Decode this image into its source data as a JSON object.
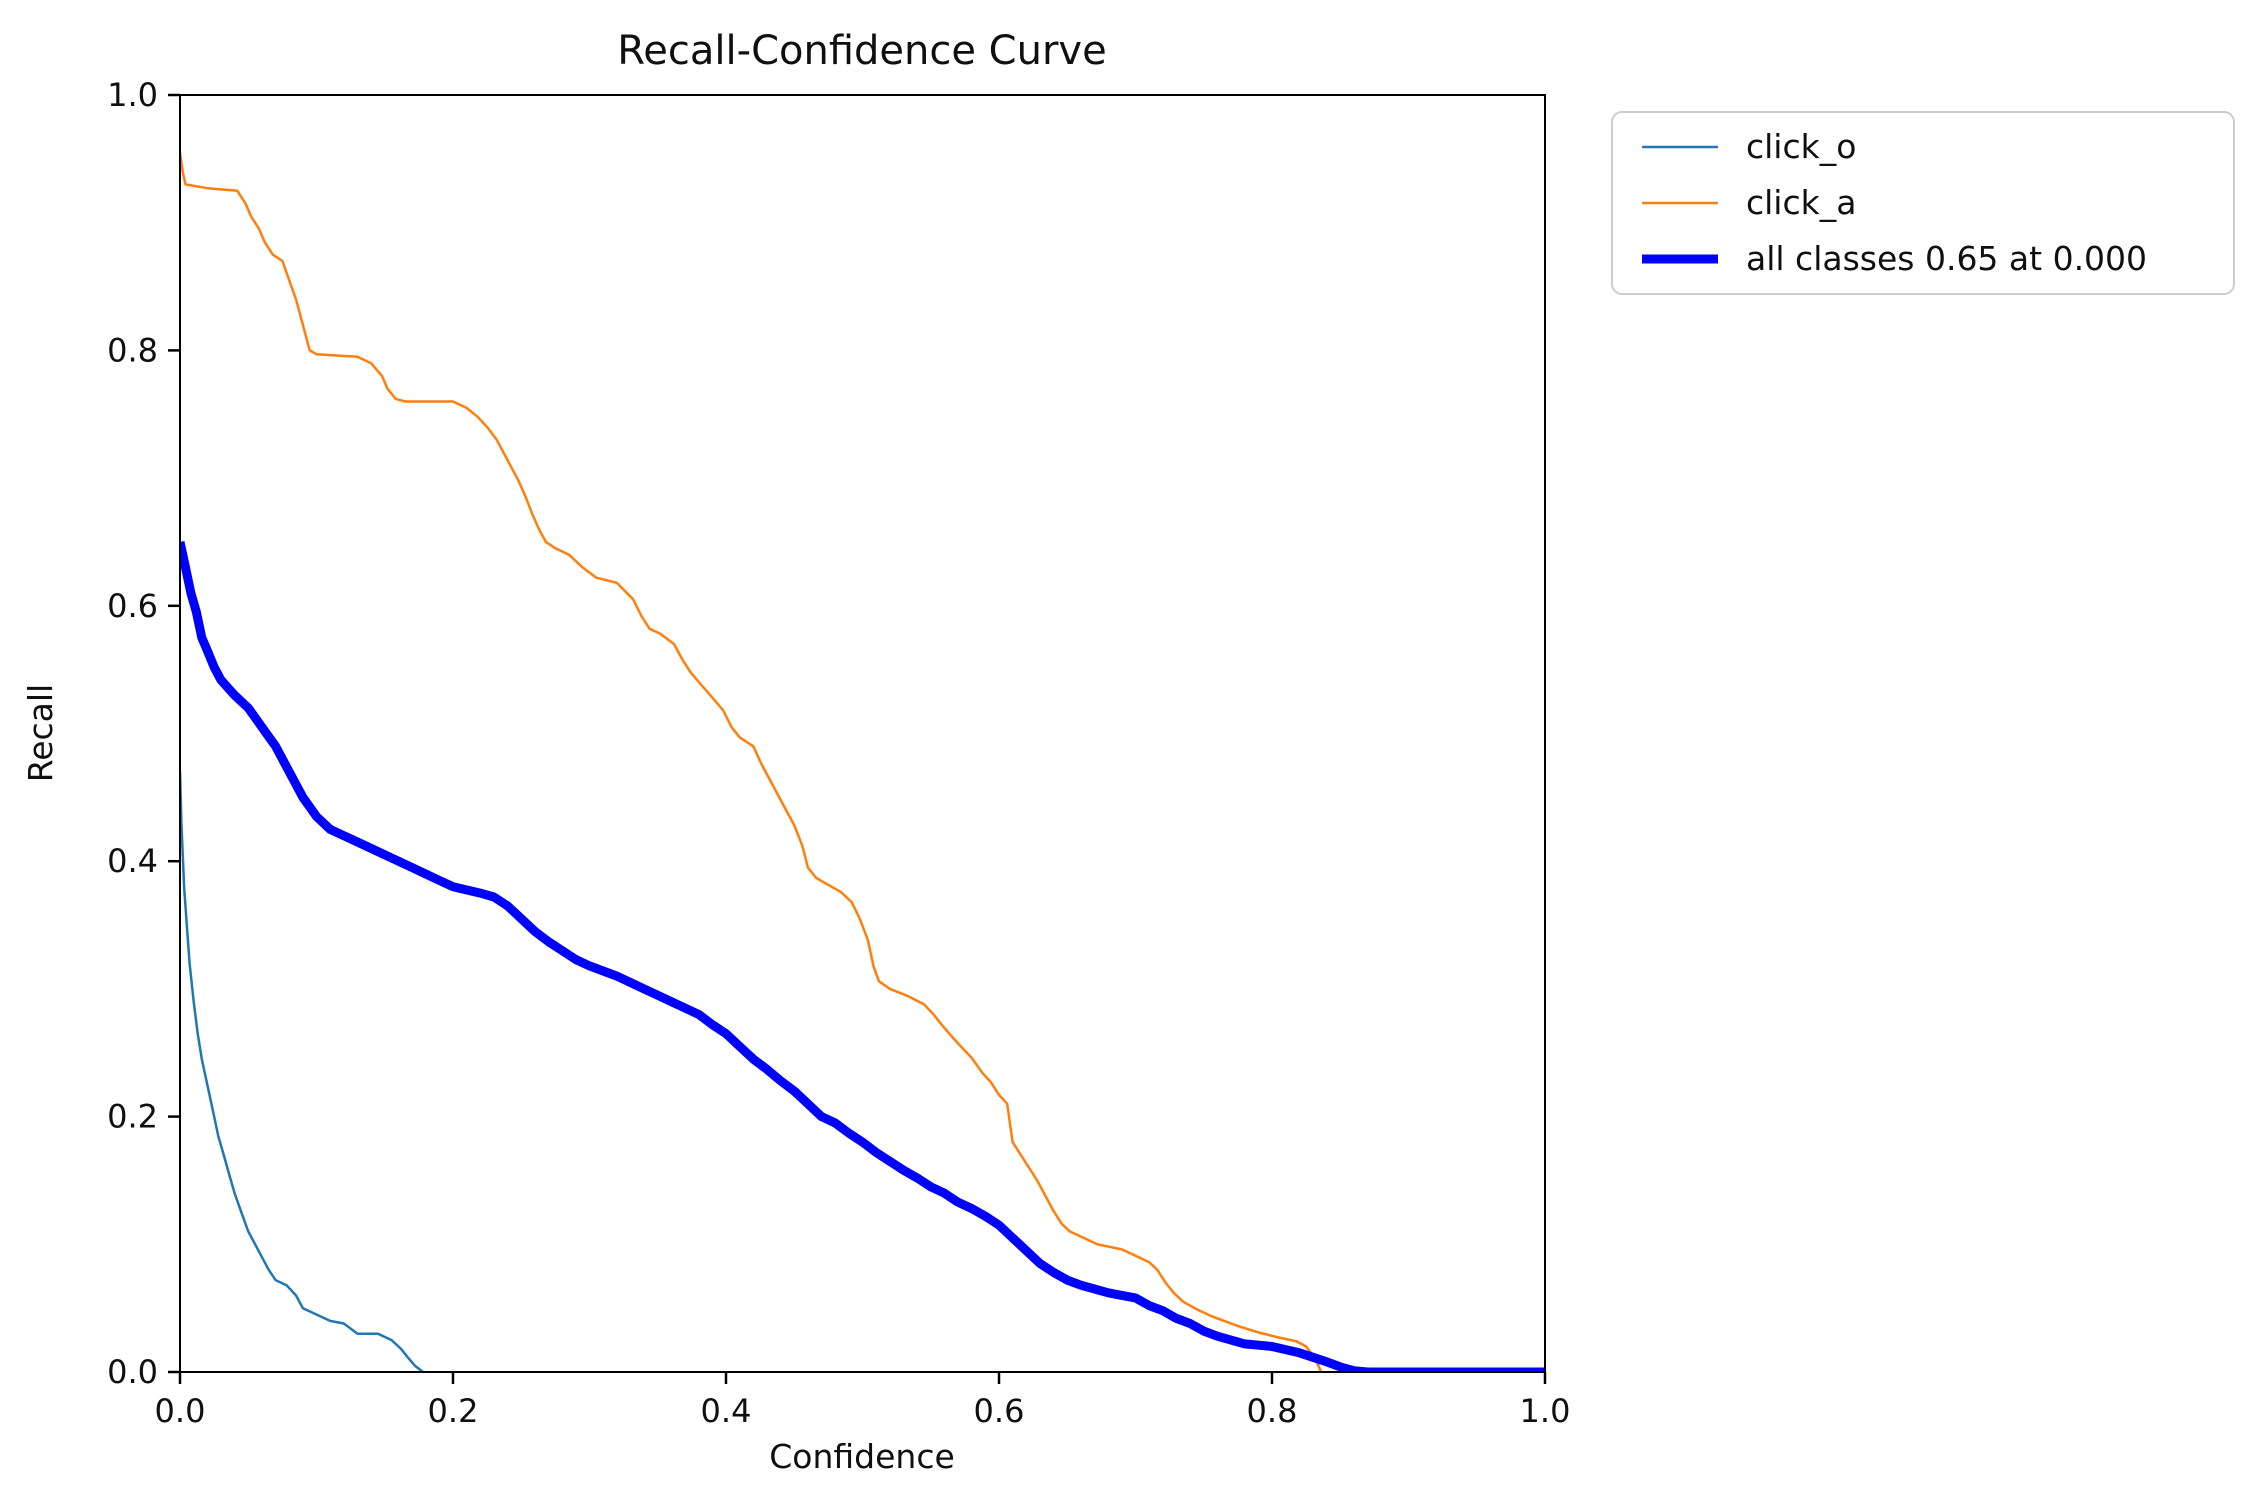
{
  "chart_data": {
    "type": "line",
    "title": "Recall-Confidence Curve",
    "xlabel": "Confidence",
    "ylabel": "Recall",
    "xlim": [
      0.0,
      1.0
    ],
    "ylim": [
      0.0,
      1.0
    ],
    "xticks": [
      "0.0",
      "0.2",
      "0.4",
      "0.6",
      "0.8",
      "1.0"
    ],
    "yticks": [
      "0.0",
      "0.2",
      "0.4",
      "0.6",
      "0.8",
      "1.0"
    ],
    "grid": false,
    "legend_position": "outside-upper-right",
    "series": [
      {
        "name": "click_o",
        "color": "#1f77b4",
        "linewidth": 2.5,
        "points": [
          [
            0.0,
            0.47
          ],
          [
            0.001,
            0.43
          ],
          [
            0.003,
            0.38
          ],
          [
            0.005,
            0.35
          ],
          [
            0.007,
            0.32
          ],
          [
            0.01,
            0.29
          ],
          [
            0.013,
            0.265
          ],
          [
            0.016,
            0.245
          ],
          [
            0.02,
            0.225
          ],
          [
            0.024,
            0.205
          ],
          [
            0.028,
            0.185
          ],
          [
            0.032,
            0.17
          ],
          [
            0.036,
            0.155
          ],
          [
            0.04,
            0.14
          ],
          [
            0.045,
            0.125
          ],
          [
            0.05,
            0.11
          ],
          [
            0.055,
            0.1
          ],
          [
            0.06,
            0.09
          ],
          [
            0.065,
            0.08
          ],
          [
            0.07,
            0.072
          ],
          [
            0.078,
            0.068
          ],
          [
            0.085,
            0.06
          ],
          [
            0.09,
            0.05
          ],
          [
            0.1,
            0.045
          ],
          [
            0.11,
            0.04
          ],
          [
            0.12,
            0.038
          ],
          [
            0.13,
            0.03
          ],
          [
            0.145,
            0.03
          ],
          [
            0.155,
            0.025
          ],
          [
            0.162,
            0.018
          ],
          [
            0.168,
            0.01
          ],
          [
            0.172,
            0.005
          ],
          [
            0.178,
            0.0
          ]
        ]
      },
      {
        "name": "click_a",
        "color": "#ff7f0e",
        "linewidth": 2.5,
        "points": [
          [
            0.0,
            0.955
          ],
          [
            0.002,
            0.94
          ],
          [
            0.004,
            0.93
          ],
          [
            0.02,
            0.927
          ],
          [
            0.042,
            0.925
          ],
          [
            0.048,
            0.915
          ],
          [
            0.052,
            0.905
          ],
          [
            0.058,
            0.895
          ],
          [
            0.062,
            0.885
          ],
          [
            0.068,
            0.875
          ],
          [
            0.075,
            0.87
          ],
          [
            0.08,
            0.855
          ],
          [
            0.085,
            0.84
          ],
          [
            0.09,
            0.82
          ],
          [
            0.095,
            0.8
          ],
          [
            0.1,
            0.797
          ],
          [
            0.13,
            0.795
          ],
          [
            0.14,
            0.79
          ],
          [
            0.148,
            0.78
          ],
          [
            0.152,
            0.77
          ],
          [
            0.158,
            0.762
          ],
          [
            0.165,
            0.76
          ],
          [
            0.2,
            0.76
          ],
          [
            0.21,
            0.755
          ],
          [
            0.218,
            0.748
          ],
          [
            0.225,
            0.74
          ],
          [
            0.232,
            0.73
          ],
          [
            0.238,
            0.718
          ],
          [
            0.243,
            0.708
          ],
          [
            0.248,
            0.698
          ],
          [
            0.253,
            0.686
          ],
          [
            0.258,
            0.672
          ],
          [
            0.263,
            0.66
          ],
          [
            0.268,
            0.65
          ],
          [
            0.275,
            0.645
          ],
          [
            0.285,
            0.64
          ],
          [
            0.295,
            0.63
          ],
          [
            0.305,
            0.622
          ],
          [
            0.32,
            0.618
          ],
          [
            0.332,
            0.605
          ],
          [
            0.338,
            0.592
          ],
          [
            0.344,
            0.582
          ],
          [
            0.352,
            0.578
          ],
          [
            0.362,
            0.57
          ],
          [
            0.368,
            0.558
          ],
          [
            0.374,
            0.548
          ],
          [
            0.382,
            0.538
          ],
          [
            0.39,
            0.528
          ],
          [
            0.398,
            0.518
          ],
          [
            0.404,
            0.505
          ],
          [
            0.41,
            0.497
          ],
          [
            0.42,
            0.49
          ],
          [
            0.426,
            0.476
          ],
          [
            0.432,
            0.464
          ],
          [
            0.438,
            0.452
          ],
          [
            0.444,
            0.44
          ],
          [
            0.45,
            0.428
          ],
          [
            0.456,
            0.412
          ],
          [
            0.46,
            0.395
          ],
          [
            0.466,
            0.387
          ],
          [
            0.474,
            0.382
          ],
          [
            0.484,
            0.376
          ],
          [
            0.492,
            0.368
          ],
          [
            0.498,
            0.355
          ],
          [
            0.504,
            0.338
          ],
          [
            0.508,
            0.318
          ],
          [
            0.512,
            0.306
          ],
          [
            0.52,
            0.3
          ],
          [
            0.532,
            0.295
          ],
          [
            0.545,
            0.288
          ],
          [
            0.552,
            0.28
          ],
          [
            0.558,
            0.272
          ],
          [
            0.566,
            0.262
          ],
          [
            0.572,
            0.255
          ],
          [
            0.58,
            0.246
          ],
          [
            0.588,
            0.234
          ],
          [
            0.594,
            0.227
          ],
          [
            0.6,
            0.217
          ],
          [
            0.606,
            0.21
          ],
          [
            0.61,
            0.18
          ],
          [
            0.616,
            0.17
          ],
          [
            0.622,
            0.16
          ],
          [
            0.628,
            0.15
          ],
          [
            0.634,
            0.138
          ],
          [
            0.64,
            0.126
          ],
          [
            0.646,
            0.116
          ],
          [
            0.652,
            0.11
          ],
          [
            0.662,
            0.105
          ],
          [
            0.672,
            0.1
          ],
          [
            0.69,
            0.096
          ],
          [
            0.7,
            0.091
          ],
          [
            0.71,
            0.086
          ],
          [
            0.716,
            0.08
          ],
          [
            0.722,
            0.07
          ],
          [
            0.728,
            0.062
          ],
          [
            0.735,
            0.055
          ],
          [
            0.745,
            0.049
          ],
          [
            0.755,
            0.044
          ],
          [
            0.765,
            0.04
          ],
          [
            0.775,
            0.036
          ],
          [
            0.79,
            0.031
          ],
          [
            0.805,
            0.027
          ],
          [
            0.818,
            0.024
          ],
          [
            0.825,
            0.02
          ],
          [
            0.83,
            0.013
          ],
          [
            0.834,
            0.005
          ],
          [
            0.836,
            0.0
          ]
        ]
      },
      {
        "name": "all classes 0.65 at 0.000",
        "color": "#0000ff",
        "linewidth": 9,
        "points": [
          [
            0.0,
            0.65
          ],
          [
            0.004,
            0.63
          ],
          [
            0.008,
            0.61
          ],
          [
            0.012,
            0.595
          ],
          [
            0.016,
            0.575
          ],
          [
            0.02,
            0.565
          ],
          [
            0.025,
            0.552
          ],
          [
            0.03,
            0.542
          ],
          [
            0.04,
            0.53
          ],
          [
            0.05,
            0.52
          ],
          [
            0.06,
            0.505
          ],
          [
            0.07,
            0.49
          ],
          [
            0.08,
            0.47
          ],
          [
            0.09,
            0.45
          ],
          [
            0.1,
            0.435
          ],
          [
            0.11,
            0.425
          ],
          [
            0.12,
            0.42
          ],
          [
            0.13,
            0.415
          ],
          [
            0.15,
            0.405
          ],
          [
            0.17,
            0.395
          ],
          [
            0.19,
            0.385
          ],
          [
            0.2,
            0.38
          ],
          [
            0.22,
            0.375
          ],
          [
            0.23,
            0.372
          ],
          [
            0.24,
            0.365
          ],
          [
            0.25,
            0.355
          ],
          [
            0.26,
            0.345
          ],
          [
            0.27,
            0.337
          ],
          [
            0.28,
            0.33
          ],
          [
            0.29,
            0.323
          ],
          [
            0.3,
            0.318
          ],
          [
            0.32,
            0.31
          ],
          [
            0.34,
            0.3
          ],
          [
            0.35,
            0.295
          ],
          [
            0.36,
            0.29
          ],
          [
            0.38,
            0.28
          ],
          [
            0.39,
            0.272
          ],
          [
            0.4,
            0.265
          ],
          [
            0.41,
            0.255
          ],
          [
            0.42,
            0.245
          ],
          [
            0.43,
            0.237
          ],
          [
            0.44,
            0.228
          ],
          [
            0.45,
            0.22
          ],
          [
            0.46,
            0.21
          ],
          [
            0.47,
            0.2
          ],
          [
            0.48,
            0.195
          ],
          [
            0.49,
            0.187
          ],
          [
            0.5,
            0.18
          ],
          [
            0.51,
            0.172
          ],
          [
            0.52,
            0.165
          ],
          [
            0.53,
            0.158
          ],
          [
            0.54,
            0.152
          ],
          [
            0.55,
            0.145
          ],
          [
            0.56,
            0.14
          ],
          [
            0.57,
            0.133
          ],
          [
            0.58,
            0.128
          ],
          [
            0.59,
            0.122
          ],
          [
            0.6,
            0.115
          ],
          [
            0.61,
            0.105
          ],
          [
            0.62,
            0.095
          ],
          [
            0.63,
            0.085
          ],
          [
            0.64,
            0.078
          ],
          [
            0.65,
            0.072
          ],
          [
            0.66,
            0.068
          ],
          [
            0.67,
            0.065
          ],
          [
            0.68,
            0.062
          ],
          [
            0.69,
            0.06
          ],
          [
            0.7,
            0.058
          ],
          [
            0.71,
            0.052
          ],
          [
            0.72,
            0.048
          ],
          [
            0.73,
            0.042
          ],
          [
            0.74,
            0.038
          ],
          [
            0.75,
            0.032
          ],
          [
            0.76,
            0.028
          ],
          [
            0.77,
            0.025
          ],
          [
            0.78,
            0.022
          ],
          [
            0.8,
            0.02
          ],
          [
            0.82,
            0.015
          ],
          [
            0.84,
            0.008
          ],
          [
            0.85,
            0.004
          ],
          [
            0.86,
            0.001
          ],
          [
            0.87,
            0.0
          ],
          [
            1.0,
            0.0
          ]
        ]
      }
    ]
  }
}
